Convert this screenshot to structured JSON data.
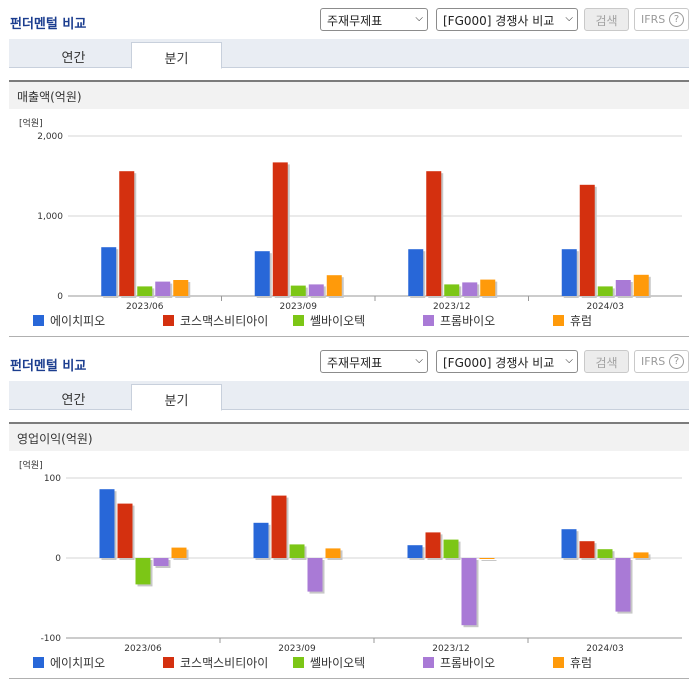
{
  "colors": [
    "#2867d8",
    "#d4300f",
    "#7cc616",
    "#a97ad6",
    "#ff9a0a"
  ],
  "blocks": [
    {
      "header": {
        "title": "펀더멘털 비교",
        "select_statement": "주재무제표",
        "select_competitor": "[FG000] 경쟁사 비교",
        "search_label": "검색",
        "ifrs_label": "IFRS",
        "help_label": "?"
      },
      "tabs": [
        {
          "label": "연간"
        },
        {
          "label": "분기"
        }
      ],
      "active_tab": "분기",
      "section_title": "매출액(억원)",
      "legend": [
        "에이치피오",
        "코스맥스비티아이",
        "쎌바이오텍",
        "프롬바이오",
        "휴럼"
      ]
    },
    {
      "header": {
        "title": "펀더멘털 비교",
        "select_statement": "주재무제표",
        "select_competitor": "[FG000] 경쟁사 비교",
        "search_label": "검색",
        "ifrs_label": "IFRS",
        "help_label": "?"
      },
      "tabs": [
        {
          "label": "연간"
        },
        {
          "label": "분기"
        }
      ],
      "active_tab": "분기",
      "section_title": "영업이익(억원)",
      "legend": [
        "에이치피오",
        "코스맥스비티아이",
        "쎌바이오텍",
        "프롬바이오",
        "휴럼"
      ]
    }
  ],
  "chart_data": [
    {
      "type": "bar",
      "title": "매출액(억원)",
      "unit_label": "[억원]",
      "categories": [
        "2023/06",
        "2023/09",
        "2023/12",
        "2024/03"
      ],
      "ylim": [
        0,
        2000
      ],
      "yticks": [
        0,
        1000,
        2000
      ],
      "ytick_labels": [
        "0",
        "1,000",
        "2,000"
      ],
      "grid": true,
      "legend_position": "bottom",
      "series": [
        {
          "name": "에이치피오",
          "values": [
            610,
            560,
            585,
            585
          ]
        },
        {
          "name": "코스맥스비티아이",
          "values": [
            1560,
            1670,
            1560,
            1390
          ]
        },
        {
          "name": "쎌바이오텍",
          "values": [
            120,
            130,
            145,
            120
          ]
        },
        {
          "name": "프롬바이오",
          "values": [
            180,
            145,
            170,
            200
          ]
        },
        {
          "name": "휴럼",
          "values": [
            200,
            260,
            205,
            265
          ]
        }
      ]
    },
    {
      "type": "bar",
      "title": "영업이익(억원)",
      "unit_label": "[억원]",
      "categories": [
        "2023/06",
        "2023/09",
        "2023/12",
        "2024/03"
      ],
      "ylim": [
        -100,
        100
      ],
      "yticks": [
        -100,
        0,
        100
      ],
      "ytick_labels": [
        "-100",
        "0",
        "100"
      ],
      "grid": true,
      "legend_position": "bottom",
      "series": [
        {
          "name": "에이치피오",
          "values": [
            86,
            44,
            16,
            36
          ]
        },
        {
          "name": "코스맥스비티아이",
          "values": [
            68,
            78,
            32,
            21
          ]
        },
        {
          "name": "쎌바이오텍",
          "values": [
            -33,
            17,
            23,
            11
          ]
        },
        {
          "name": "프롬바이오",
          "values": [
            -10,
            -42,
            -84,
            -67
          ]
        },
        {
          "name": "휴럼",
          "values": [
            13,
            12,
            0,
            7
          ]
        }
      ]
    }
  ]
}
